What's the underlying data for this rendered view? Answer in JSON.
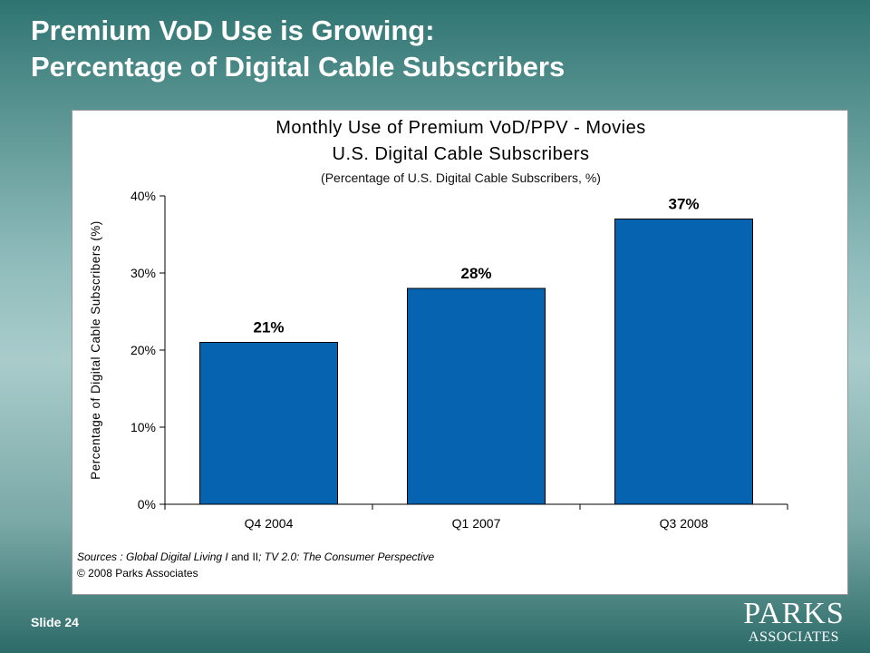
{
  "slide": {
    "title_line1": "Premium VoD Use is Growing:",
    "title_line2": "Percentage of Digital Cable Subscribers",
    "slide_number": "Slide 24",
    "logo_line1": "PARKS",
    "logo_line2": "ASSOCIATES",
    "background_color": "#5f9997"
  },
  "chart_data": {
    "type": "bar",
    "title": "Monthly Use of Premium VoD/PPV - Movies",
    "subtitle": "U.S. Digital Cable Subscribers",
    "subsubtitle": "(Percentage of U.S. Digital Cable Subscribers, %)",
    "ylabel": "Percentage of Digital Cable Subscribers (%)",
    "xlabel": "",
    "categories": [
      "Q4 2004",
      "Q1 2007",
      "Q3 2008"
    ],
    "values": [
      21,
      28,
      37
    ],
    "data_labels": [
      "21%",
      "28%",
      "37%"
    ],
    "ylim": [
      0,
      40
    ],
    "yticks": [
      0,
      10,
      20,
      30,
      40
    ],
    "ytick_labels": [
      "0%",
      "10%",
      "20%",
      "30%",
      "40%"
    ],
    "bar_color": "#0563b0",
    "grid": false,
    "legend": "none"
  },
  "footer": {
    "source_italic": "Sources : Global Digital Living I",
    "source_plain": " and II",
    "source_italic_2": "; TV 2.0: The Consumer Perspective",
    "copyright": "© 2008 Parks Associates"
  }
}
